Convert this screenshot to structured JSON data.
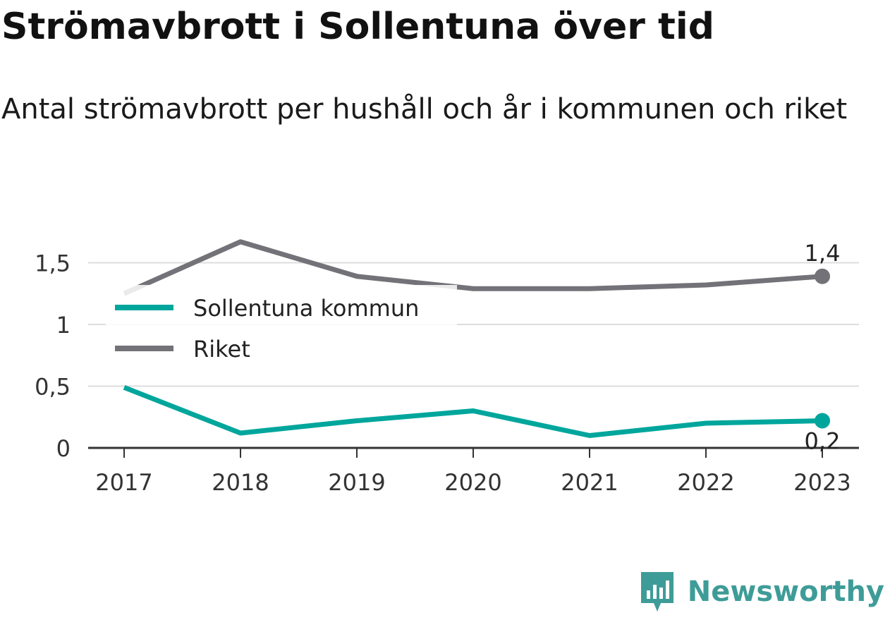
{
  "chart_data": {
    "type": "line",
    "title": "Strömavbrott i Sollentuna över tid",
    "subtitle": "Antal strömavbrott per hushåll och år i kommunen och riket",
    "categories": [
      "2017",
      "2018",
      "2019",
      "2020",
      "2021",
      "2022",
      "2023"
    ],
    "series": [
      {
        "name": "Sollentuna kommun",
        "color": "#00a69c",
        "values": [
          0.49,
          0.12,
          0.22,
          0.3,
          0.1,
          0.2,
          0.22
        ],
        "end_label": "0,2"
      },
      {
        "name": "Riket",
        "color": "#737278",
        "values": [
          1.25,
          1.67,
          1.39,
          1.29,
          1.29,
          1.32,
          1.39
        ],
        "end_label": "1,4"
      }
    ],
    "y_ticks": [
      {
        "value": 0,
        "label": "0"
      },
      {
        "value": 0.5,
        "label": "0,5"
      },
      {
        "value": 1,
        "label": "1"
      },
      {
        "value": 1.5,
        "label": "1,5"
      }
    ],
    "ylim": [
      0,
      1.75
    ],
    "xlabel": "",
    "ylabel": "",
    "grid": true,
    "legend_position": "top-left"
  },
  "brand": {
    "name": "Newsworthy",
    "icon": "newsworthy-logo-icon",
    "color": "#3e9c98"
  }
}
